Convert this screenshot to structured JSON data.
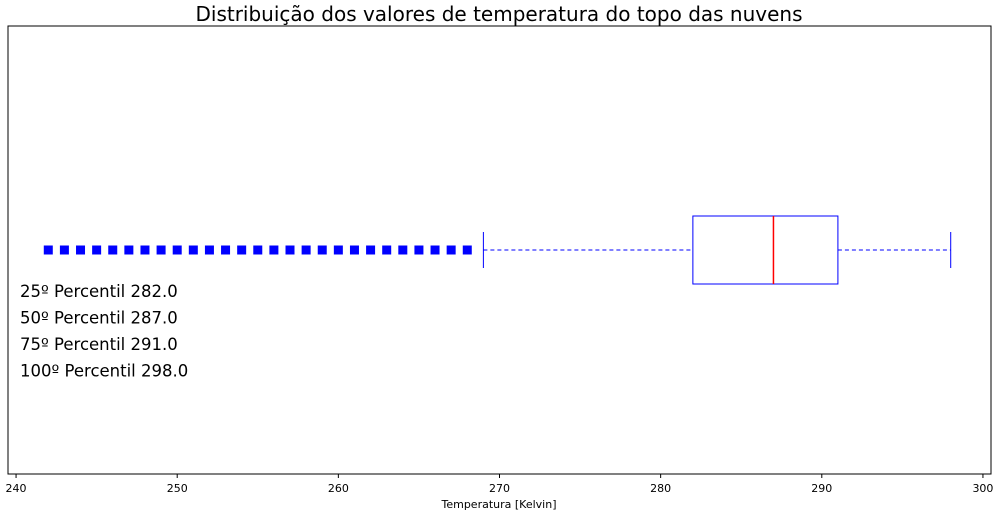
{
  "chart_data": {
    "type": "boxplot",
    "orientation": "horizontal",
    "title": "Distribuição dos valores de temperatura do topo das nuvens",
    "xlabel": "Temperatura [Kelvin]",
    "xlim": [
      239.5,
      300.5
    ],
    "xticks": [
      240,
      250,
      260,
      270,
      280,
      290,
      300
    ],
    "box": {
      "whisker_low": 269,
      "q1": 282,
      "median": 287,
      "q3": 291,
      "whisker_high": 298
    },
    "outliers": [
      242,
      243,
      244,
      245,
      246,
      247,
      248,
      249,
      250,
      251,
      252,
      253,
      254,
      255,
      256,
      257,
      258,
      259,
      260,
      261,
      262,
      263,
      264,
      265,
      266,
      267,
      268
    ],
    "colors": {
      "box": "#0000ff",
      "median": "#ff0000",
      "outlier": "#0000ff",
      "whisker": "#0000ff"
    },
    "annotations": [
      "25º Percentil 282.0",
      "50º Percentil 287.0",
      "75º Percentil 291.0",
      "100º Percentil 298.0"
    ]
  }
}
